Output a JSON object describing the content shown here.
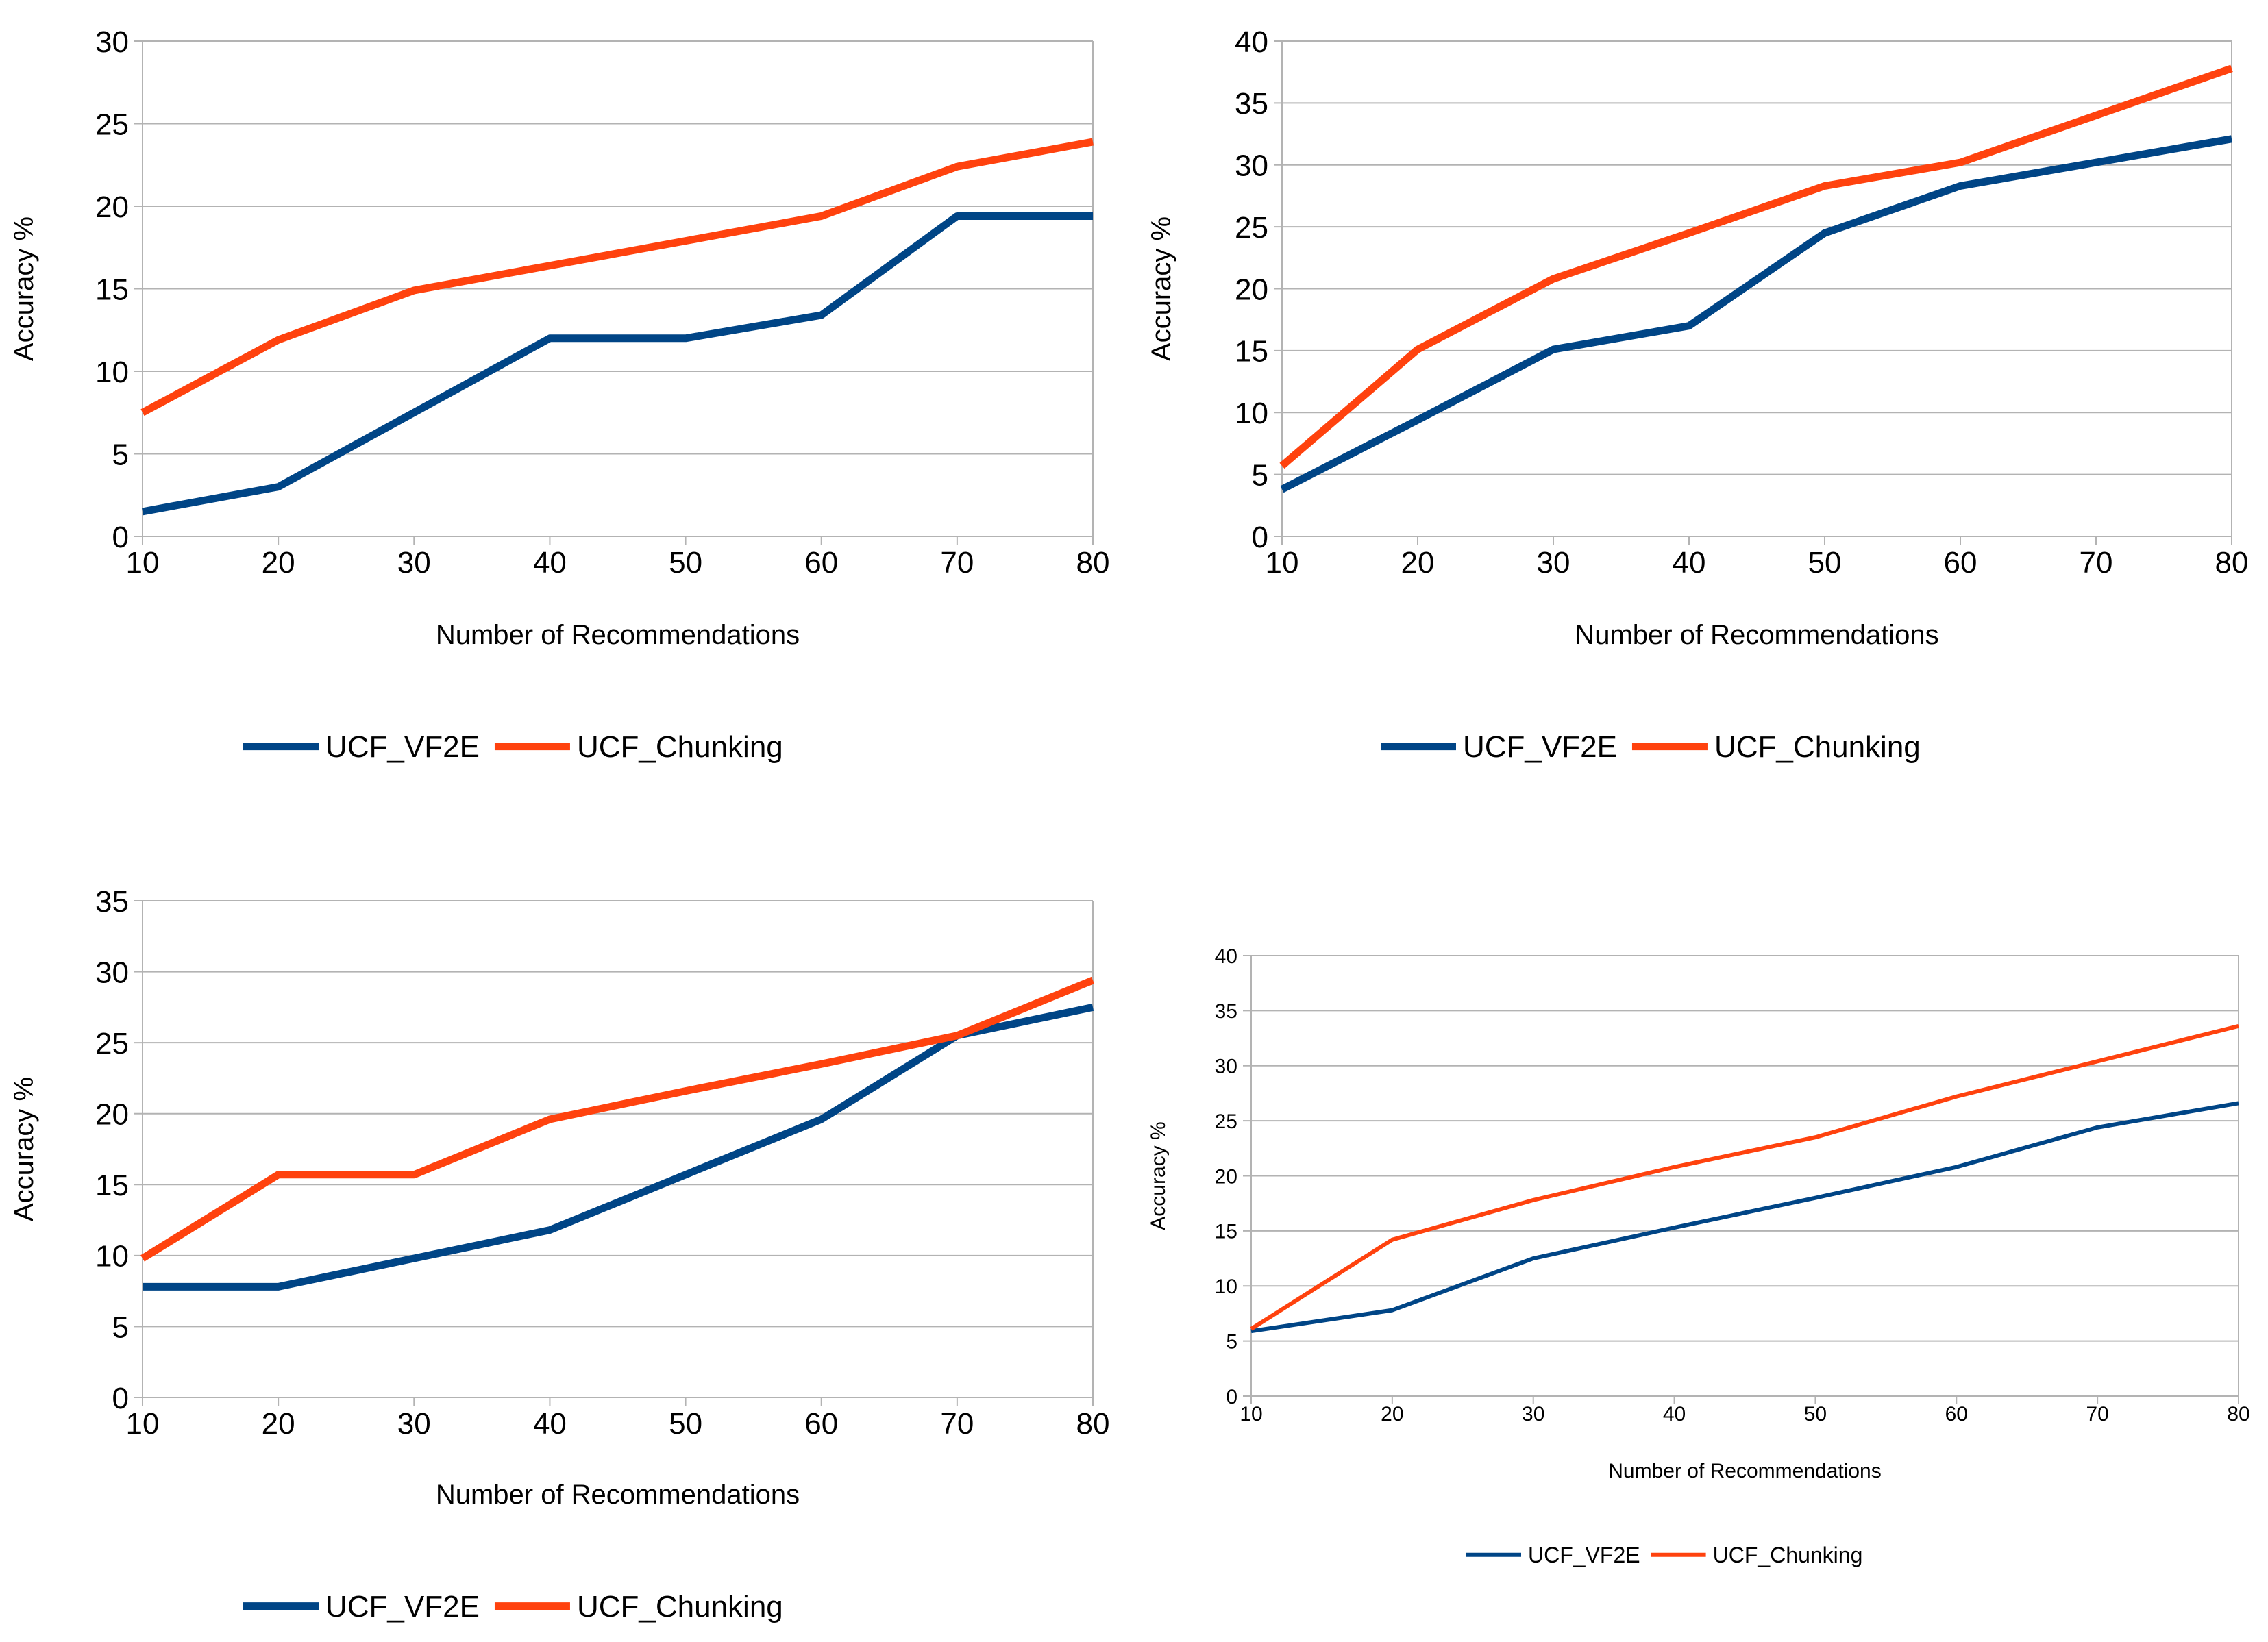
{
  "colors": {
    "UCF_VF2E": "#004586",
    "UCF_Chunking": "#ff420e",
    "grid": "#b3b3b3",
    "axis": "#b3b3b3"
  },
  "chart_data": [
    {
      "type": "line",
      "title": "",
      "xlabel": "Number of Recommendations",
      "ylabel": "Accuracy %",
      "x": [
        10,
        20,
        30,
        40,
        50,
        60,
        70,
        80
      ],
      "xlim": [
        10,
        80
      ],
      "ylim": [
        0,
        30
      ],
      "yticks": [
        0,
        5,
        10,
        15,
        20,
        25,
        30
      ],
      "grid": true,
      "legend_position": "bottom",
      "series": [
        {
          "name": "UCF_VF2E",
          "values": [
            1.5,
            3.0,
            7.5,
            12.0,
            12.0,
            13.4,
            19.4,
            19.4
          ]
        },
        {
          "name": "UCF_Chunking",
          "values": [
            7.5,
            11.9,
            14.9,
            16.4,
            17.9,
            19.4,
            22.4,
            23.9
          ]
        }
      ]
    },
    {
      "type": "line",
      "title": "",
      "xlabel": "Number of Recommendations",
      "ylabel": "Accuracy %",
      "x": [
        10,
        20,
        30,
        40,
        50,
        60,
        70,
        80
      ],
      "xlim": [
        10,
        80
      ],
      "ylim": [
        0,
        40
      ],
      "yticks": [
        0,
        5,
        10,
        15,
        20,
        25,
        30,
        35,
        40
      ],
      "grid": true,
      "legend_position": "bottom",
      "series": [
        {
          "name": "UCF_VF2E",
          "values": [
            3.8,
            9.4,
            15.1,
            17.0,
            24.5,
            28.3,
            30.2,
            32.1
          ]
        },
        {
          "name": "UCF_Chunking",
          "values": [
            5.7,
            15.1,
            20.8,
            24.5,
            28.3,
            30.2,
            34.0,
            37.8
          ]
        }
      ]
    },
    {
      "type": "line",
      "title": "",
      "xlabel": "Number of Recommendations",
      "ylabel": "Accuracy %",
      "x": [
        10,
        20,
        30,
        40,
        50,
        60,
        70,
        80
      ],
      "xlim": [
        10,
        80
      ],
      "ylim": [
        0,
        35
      ],
      "yticks": [
        0,
        5,
        10,
        15,
        20,
        25,
        30,
        35
      ],
      "grid": true,
      "legend_position": "bottom",
      "series": [
        {
          "name": "UCF_VF2E",
          "values": [
            7.8,
            7.8,
            9.8,
            11.8,
            15.7,
            19.6,
            25.5,
            27.5
          ]
        },
        {
          "name": "UCF_Chunking",
          "values": [
            9.8,
            15.7,
            15.7,
            19.6,
            21.6,
            23.5,
            25.5,
            29.4
          ]
        }
      ]
    },
    {
      "type": "line",
      "title": "",
      "xlabel": "Number of Recommendations",
      "ylabel": "Accuracy %",
      "x": [
        10,
        20,
        30,
        40,
        50,
        60,
        70,
        80
      ],
      "xlim": [
        10,
        80
      ],
      "ylim": [
        0,
        40
      ],
      "yticks": [
        0,
        5,
        10,
        15,
        20,
        25,
        30,
        35,
        40
      ],
      "grid": true,
      "legend_position": "bottom",
      "series": [
        {
          "name": "UCF_VF2E",
          "values": [
            5.9,
            7.8,
            12.5,
            15.3,
            18.0,
            20.8,
            24.4,
            26.6
          ]
        },
        {
          "name": "UCF_Chunking",
          "values": [
            6.1,
            14.2,
            17.8,
            20.8,
            23.5,
            27.2,
            30.4,
            33.6
          ]
        }
      ]
    }
  ]
}
